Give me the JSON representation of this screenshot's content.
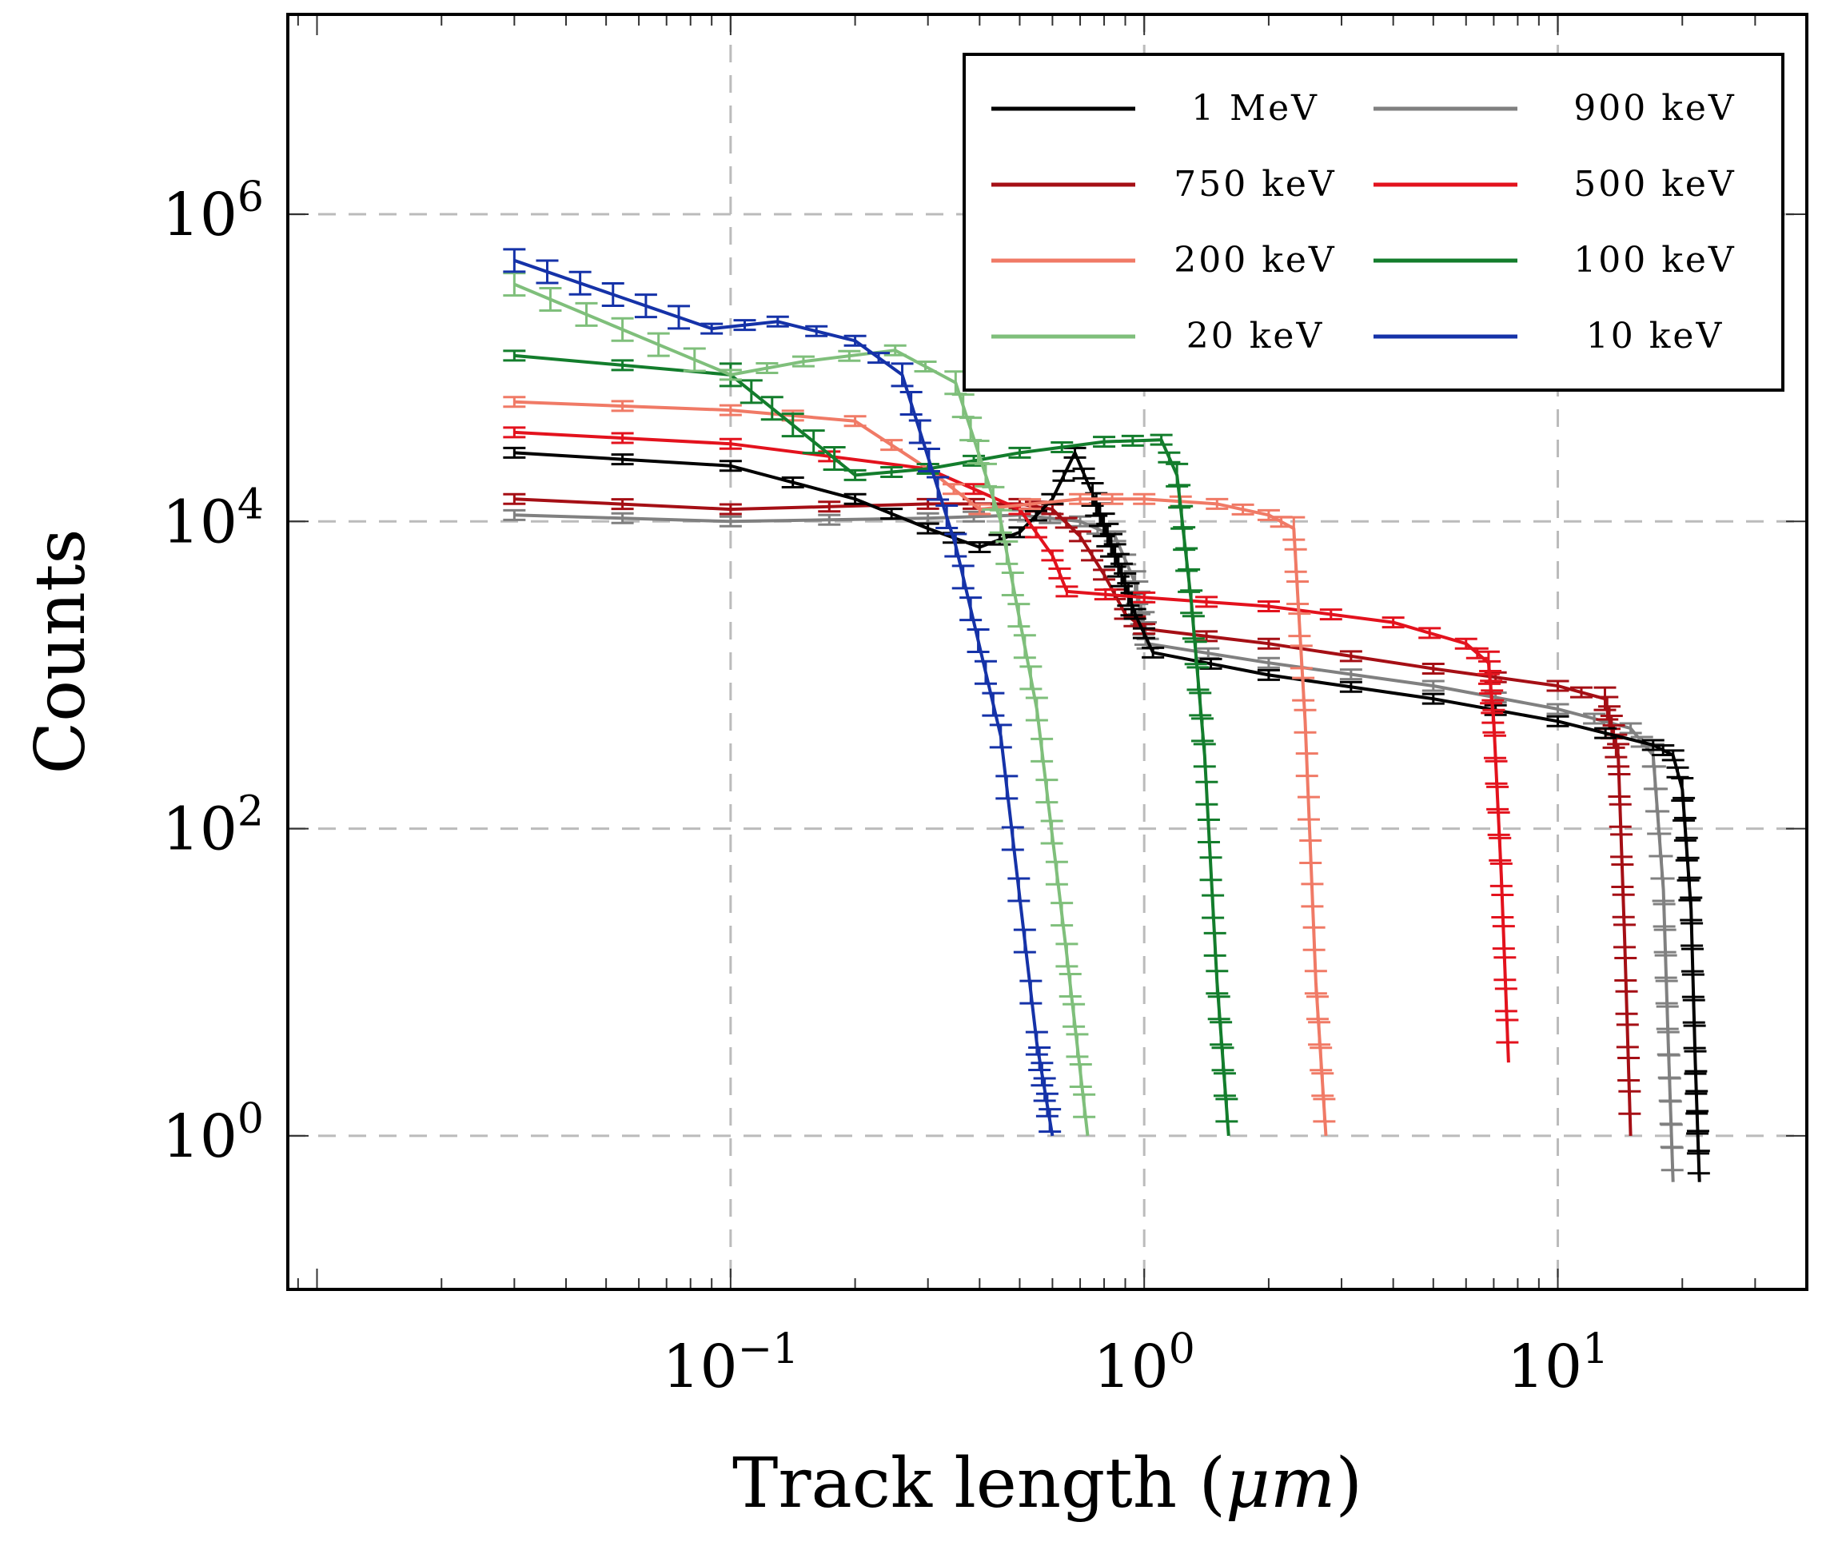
{
  "chart_data": {
    "type": "line",
    "xscale": "log",
    "yscale": "log",
    "xlabel": "Track length (μm)",
    "xlabel_prefix": "Track length (",
    "xlabel_unit": "μm",
    "xlabel_suffix": ")",
    "ylabel": "Counts",
    "xlim": [
      0.0085,
      40
    ],
    "ylim": [
      0.1,
      20000000
    ],
    "grid": true,
    "legend_position": "top-right",
    "x_ticks": [
      {
        "value": 0.1,
        "base": "10",
        "exp": "−1"
      },
      {
        "value": 1,
        "base": "10",
        "exp": "0"
      },
      {
        "value": 10,
        "base": "10",
        "exp": "1"
      }
    ],
    "y_ticks": [
      {
        "value": 1,
        "base": "10",
        "exp": "0"
      },
      {
        "value": 100,
        "base": "10",
        "exp": "2"
      },
      {
        "value": 10000,
        "base": "10",
        "exp": "4"
      },
      {
        "value": 1000000,
        "base": "10",
        "exp": "6"
      }
    ],
    "series": [
      {
        "name": "1 MeV",
        "color": "#000000",
        "points": [
          [
            0.03,
            28000
          ],
          [
            0.1,
            23000
          ],
          [
            0.2,
            14000
          ],
          [
            0.3,
            9000
          ],
          [
            0.4,
            6800
          ],
          [
            0.5,
            8500
          ],
          [
            0.6,
            14000
          ],
          [
            0.68,
            28000
          ],
          [
            0.75,
            15000
          ],
          [
            0.85,
            6000
          ],
          [
            0.95,
            2500
          ],
          [
            1.05,
            1400
          ],
          [
            2,
            1000
          ],
          [
            5,
            700
          ],
          [
            10,
            500
          ],
          [
            17,
            350
          ],
          [
            19,
            300
          ],
          [
            20,
            180
          ],
          [
            21,
            30
          ],
          [
            21.5,
            3
          ],
          [
            22,
            0.5
          ]
        ]
      },
      {
        "name": "900 keV",
        "color": "#808080",
        "points": [
          [
            0.03,
            11000
          ],
          [
            0.1,
            10000
          ],
          [
            0.3,
            10500
          ],
          [
            0.5,
            11000
          ],
          [
            0.7,
            10000
          ],
          [
            0.85,
            8000
          ],
          [
            0.95,
            4000
          ],
          [
            1.02,
            1600
          ],
          [
            2,
            1200
          ],
          [
            5,
            850
          ],
          [
            10,
            600
          ],
          [
            15,
            450
          ],
          [
            17,
            300
          ],
          [
            18,
            40
          ],
          [
            18.5,
            4
          ],
          [
            19,
            0.5
          ]
        ]
      },
      {
        "name": "750 keV",
        "color": "#a50f15",
        "points": [
          [
            0.03,
            14000
          ],
          [
            0.1,
            12000
          ],
          [
            0.3,
            13000
          ],
          [
            0.5,
            13000
          ],
          [
            0.6,
            12000
          ],
          [
            0.7,
            8000
          ],
          [
            0.8,
            4500
          ],
          [
            0.9,
            2500
          ],
          [
            1,
            2000
          ],
          [
            2,
            1600
          ],
          [
            5,
            1100
          ],
          [
            10,
            850
          ],
          [
            13,
            700
          ],
          [
            14,
            300
          ],
          [
            14.5,
            20
          ],
          [
            15,
            1
          ]
        ]
      },
      {
        "name": "500 keV",
        "color": "#e3121d",
        "points": [
          [
            0.03,
            38000
          ],
          [
            0.1,
            32000
          ],
          [
            0.3,
            22000
          ],
          [
            0.5,
            12000
          ],
          [
            0.6,
            6000
          ],
          [
            0.65,
            3500
          ],
          [
            1,
            3200
          ],
          [
            2,
            2800
          ],
          [
            4,
            2200
          ],
          [
            6,
            1600
          ],
          [
            6.8,
            1200
          ],
          [
            7,
            500
          ],
          [
            7.3,
            50
          ],
          [
            7.6,
            3
          ]
        ]
      },
      {
        "name": "200 keV",
        "color": "#f07a66",
        "points": [
          [
            0.03,
            60000
          ],
          [
            0.1,
            53000
          ],
          [
            0.2,
            45000
          ],
          [
            0.3,
            22000
          ],
          [
            0.4,
            12000
          ],
          [
            0.7,
            14000
          ],
          [
            1,
            14000
          ],
          [
            1.5,
            13000
          ],
          [
            2,
            11000
          ],
          [
            2.3,
            9000
          ],
          [
            2.45,
            500
          ],
          [
            2.6,
            10
          ],
          [
            2.75,
            1
          ]
        ]
      },
      {
        "name": "100 keV",
        "color": "#137d2c",
        "points": [
          [
            0.03,
            120000
          ],
          [
            0.1,
            90000
          ],
          [
            0.2,
            20000
          ],
          [
            0.3,
            22000
          ],
          [
            0.5,
            28000
          ],
          [
            0.8,
            33000
          ],
          [
            1.1,
            34000
          ],
          [
            1.2,
            20000
          ],
          [
            1.3,
            3000
          ],
          [
            1.4,
            300
          ],
          [
            1.5,
            10
          ],
          [
            1.6,
            1
          ]
        ]
      },
      {
        "name": "20 keV",
        "color": "#7fbf7b",
        "points": [
          [
            0.03,
            350000
          ],
          [
            0.1,
            90000
          ],
          [
            0.15,
            110000
          ],
          [
            0.25,
            130000
          ],
          [
            0.35,
            80000
          ],
          [
            0.45,
            10000
          ],
          [
            0.55,
            600
          ],
          [
            0.65,
            15
          ],
          [
            0.73,
            1
          ]
        ]
      },
      {
        "name": "10 keV",
        "color": "#1532a8",
        "points": [
          [
            0.03,
            500000
          ],
          [
            0.09,
            180000
          ],
          [
            0.13,
            200000
          ],
          [
            0.2,
            150000
          ],
          [
            0.26,
            90000
          ],
          [
            0.35,
            7000
          ],
          [
            0.45,
            400
          ],
          [
            0.55,
            4
          ],
          [
            0.6,
            1
          ]
        ]
      }
    ]
  }
}
